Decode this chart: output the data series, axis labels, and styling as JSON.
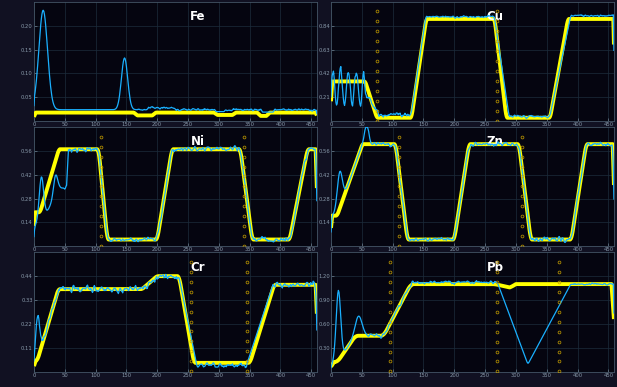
{
  "titles": [
    "Fe",
    "Cu",
    "Ni",
    "Zn",
    "Cr",
    "Pb"
  ],
  "bg": "#050510",
  "grid_color": "#1c2c3c",
  "blue": "#1ab0ff",
  "yellow": "#ffff00",
  "marker_color": "#c8a000",
  "border_color": "#cccccc",
  "outer_bg": "#111122",
  "n": 460,
  "fe_ylim": [
    0,
    0.25
  ],
  "cu_ylim": [
    0,
    1.05
  ],
  "ni_ylim": [
    0,
    0.7
  ],
  "zn_ylim": [
    0,
    0.7
  ],
  "cr_ylim": [
    0,
    0.55
  ],
  "pb_ylim": [
    0,
    1.5
  ]
}
